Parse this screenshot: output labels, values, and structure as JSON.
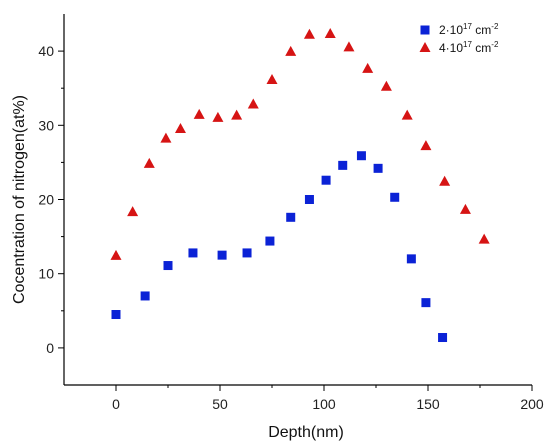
{
  "chart_data": {
    "type": "scatter",
    "xlabel": "Depth(nm)",
    "ylabel": "Cocentration of nitrogen(at%)",
    "xlim": [
      -25,
      200
    ],
    "ylim": [
      -5,
      45
    ],
    "x_ticks": [
      0,
      50,
      100,
      150,
      200
    ],
    "y_ticks": [
      0,
      10,
      20,
      30,
      40
    ],
    "grid": false,
    "legend_position": "top-right",
    "series": [
      {
        "name": "2·10¹⁷ cm⁻²",
        "legend": {
          "base": "2·10",
          "exp1": "17",
          "unit": " cm",
          "exp2": "-2"
        },
        "marker": "square",
        "color": "#0b22d6",
        "points": [
          [
            0,
            4.5
          ],
          [
            14,
            7.0
          ],
          [
            25,
            11.1
          ],
          [
            37,
            12.8
          ],
          [
            51,
            12.5
          ],
          [
            63,
            12.8
          ],
          [
            74,
            14.4
          ],
          [
            84,
            17.6
          ],
          [
            93,
            20.0
          ],
          [
            101,
            22.6
          ],
          [
            109,
            24.6
          ],
          [
            118,
            25.9
          ],
          [
            126,
            24.2
          ],
          [
            134,
            20.3
          ],
          [
            142,
            12.0
          ],
          [
            149,
            6.1
          ],
          [
            157,
            1.4
          ]
        ]
      },
      {
        "name": "4·10¹⁷ cm⁻²",
        "legend": {
          "base": "4·10",
          "exp1": "17",
          "unit": " cm",
          "exp2": "-2"
        },
        "marker": "triangle",
        "color": "#d61414",
        "points": [
          [
            0,
            12.4
          ],
          [
            8,
            18.3
          ],
          [
            16,
            24.8
          ],
          [
            24,
            28.2
          ],
          [
            31,
            29.5
          ],
          [
            40,
            31.4
          ],
          [
            49,
            31.0
          ],
          [
            58,
            31.3
          ],
          [
            66,
            32.8
          ],
          [
            75,
            36.1
          ],
          [
            84,
            39.9
          ],
          [
            93,
            42.2
          ],
          [
            103,
            42.3
          ],
          [
            112,
            40.5
          ],
          [
            121,
            37.6
          ],
          [
            130,
            35.2
          ],
          [
            140,
            31.3
          ],
          [
            149,
            27.2
          ],
          [
            158,
            22.4
          ],
          [
            168,
            18.6
          ],
          [
            177,
            14.6
          ]
        ]
      }
    ]
  }
}
